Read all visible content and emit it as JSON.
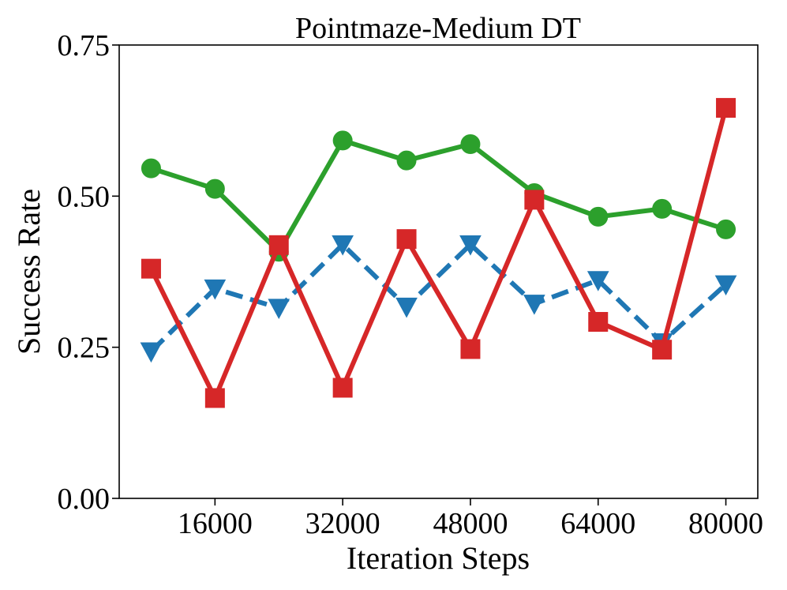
{
  "chart_data": {
    "type": "line",
    "title": "Pointmaze-Medium DT",
    "xlabel": "Iteration Steps",
    "ylabel": "Success Rate",
    "xlim": [
      4000,
      84000
    ],
    "ylim": [
      0.0,
      0.75
    ],
    "xticks": [
      16000,
      32000,
      48000,
      64000,
      80000
    ],
    "xtick_labels": [
      "16000",
      "32000",
      "48000",
      "64000",
      "80000"
    ],
    "yticks": [
      0.0,
      0.25,
      0.5,
      0.75
    ],
    "ytick_labels": [
      "0.00",
      "0.25",
      "0.50",
      "0.75"
    ],
    "grid": false,
    "legend": false,
    "x": [
      8000,
      16000,
      24000,
      32000,
      40000,
      48000,
      56000,
      64000,
      72000,
      80000
    ],
    "series": [
      {
        "name": "green-circle",
        "color": "#2ca02c",
        "marker": "circle",
        "linestyle": "solid",
        "values": [
          0.546,
          0.512,
          0.408,
          0.592,
          0.559,
          0.586,
          0.505,
          0.466,
          0.479,
          0.445
        ]
      },
      {
        "name": "blue-triangle",
        "color": "#1f77b4",
        "marker": "triangle-down",
        "linestyle": "dashed",
        "values": [
          0.243,
          0.347,
          0.315,
          0.42,
          0.317,
          0.42,
          0.322,
          0.361,
          0.258,
          0.354
        ]
      },
      {
        "name": "red-square",
        "color": "#d62728",
        "marker": "square",
        "linestyle": "solid",
        "values": [
          0.38,
          0.166,
          0.419,
          0.183,
          0.429,
          0.247,
          0.494,
          0.292,
          0.246,
          0.646
        ]
      }
    ]
  }
}
